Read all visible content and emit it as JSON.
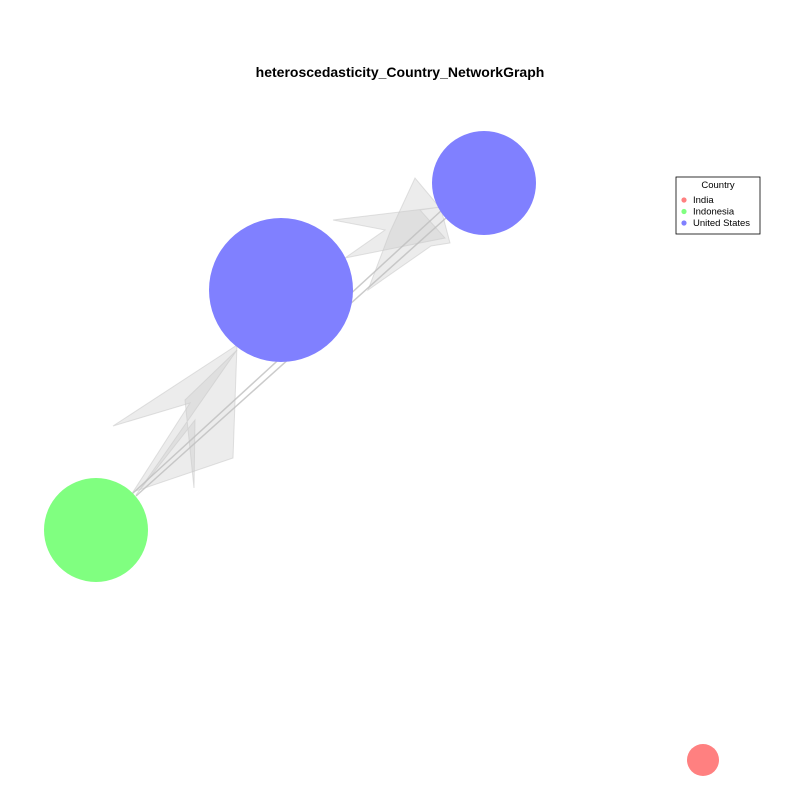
{
  "title": "heteroscedasticity_Country_NetworkGraph",
  "legend": {
    "title": "Country",
    "items": [
      {
        "label": "India",
        "color": "#FF8080"
      },
      {
        "label": "Indonesia",
        "color": "#80FF80"
      },
      {
        "label": "United States",
        "color": "#8080FF"
      }
    ]
  },
  "network": {
    "node_colors": {
      "India": "#FF8080",
      "Indonesia": "#80FF80",
      "United States": "#8080FF"
    },
    "nodes": [
      {
        "id": "us-large",
        "country": "United States"
      },
      {
        "id": "us-small",
        "country": "United States"
      },
      {
        "id": "indonesia",
        "country": "Indonesia"
      },
      {
        "id": "india",
        "country": "India"
      }
    ],
    "edges": [
      {
        "from": "us-small",
        "to": "us-large",
        "style": "curved"
      },
      {
        "from": "us-small",
        "to": "us-large",
        "style": "curved"
      },
      {
        "from": "us-large",
        "to": "indonesia",
        "style": "curved"
      },
      {
        "from": "us-large",
        "to": "indonesia",
        "style": "curved"
      },
      {
        "from": "us-small",
        "to": "indonesia",
        "style": "straight"
      },
      {
        "from": "us-small",
        "to": "indonesia",
        "style": "straight"
      }
    ],
    "edge_color": "#C8C8C8"
  }
}
